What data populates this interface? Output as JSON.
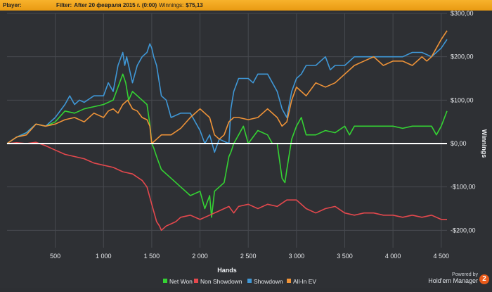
{
  "topbar": {
    "player_label": "Player:",
    "filter_label": "Filter:",
    "filter_value": "After 20 февраля 2015 г. (0:00)",
    "winnings_label": "Winnings:",
    "winnings_value": "$75,13"
  },
  "branding": {
    "powered_by": "Powered by",
    "product": "Hold'em Manager",
    "version_badge": "2"
  },
  "colors": {
    "net_won": "#34d233",
    "non_showdown": "#e4484d",
    "showdown": "#3f97d6",
    "all_in_ev": "#ef9338",
    "zero_line": "#ffffff",
    "grid": "#474a4f",
    "plot_bg": "#2e3034",
    "topbar": "#f3a81e"
  },
  "chart_data": {
    "type": "line",
    "xlabel": "Hands",
    "ylabel": "Winnings",
    "xlim": [
      0,
      4560
    ],
    "ylim": [
      -240,
      300
    ],
    "x_ticks": [
      500,
      1000,
      1500,
      2000,
      2500,
      3000,
      3500,
      4000,
      4500
    ],
    "x_tick_labels": [
      "500",
      "1 000",
      "1 500",
      "2 000",
      "2 500",
      "3 000",
      "3 500",
      "4 000",
      "4 500"
    ],
    "y_ticks": [
      300,
      200,
      100,
      0,
      -100,
      -200
    ],
    "y_tick_labels": [
      "$300,00",
      "$200,00",
      "$100,00",
      "$0,00",
      "-$100,00",
      "-$200,00"
    ],
    "legend_position": "bottom",
    "grid": true,
    "series": [
      {
        "name": "Net Won",
        "color_key": "net_won",
        "x": [
          0,
          100,
          200,
          300,
          400,
          500,
          600,
          700,
          800,
          900,
          1000,
          1100,
          1200,
          1230,
          1260,
          1300,
          1400,
          1450,
          1480,
          1500,
          1520,
          1550,
          1600,
          1700,
          1800,
          1900,
          2000,
          2050,
          2100,
          2120,
          2150,
          2200,
          2250,
          2300,
          2320,
          2350,
          2400,
          2450,
          2500,
          2600,
          2700,
          2750,
          2800,
          2850,
          2880,
          2900,
          2950,
          3000,
          3050,
          3100,
          3200,
          3300,
          3400,
          3500,
          3550,
          3600,
          3700,
          3800,
          3900,
          4000,
          4100,
          4200,
          4300,
          4400,
          4450,
          4500,
          4560
        ],
        "y": [
          0,
          15,
          25,
          45,
          40,
          50,
          75,
          70,
          80,
          85,
          90,
          100,
          160,
          140,
          100,
          120,
          100,
          90,
          45,
          0,
          -10,
          -30,
          -60,
          -80,
          -100,
          -120,
          -110,
          -150,
          -120,
          -170,
          -110,
          -100,
          -90,
          -30,
          -20,
          0,
          20,
          40,
          0,
          30,
          20,
          0,
          0,
          -80,
          -90,
          -60,
          10,
          40,
          60,
          20,
          20,
          30,
          25,
          40,
          20,
          40,
          40,
          40,
          40,
          40,
          35,
          40,
          40,
          40,
          20,
          40,
          75
        ]
      },
      {
        "name": "Non Showdown",
        "color_key": "non_showdown",
        "x": [
          0,
          100,
          200,
          300,
          400,
          500,
          600,
          700,
          800,
          900,
          1000,
          1100,
          1200,
          1300,
          1400,
          1450,
          1500,
          1550,
          1580,
          1600,
          1650,
          1700,
          1750,
          1800,
          1900,
          2000,
          2100,
          2200,
          2300,
          2350,
          2400,
          2500,
          2600,
          2700,
          2800,
          2900,
          3000,
          3100,
          3200,
          3300,
          3400,
          3500,
          3600,
          3700,
          3800,
          3900,
          4000,
          4100,
          4200,
          4300,
          4400,
          4500,
          4560
        ],
        "y": [
          0,
          2,
          0,
          3,
          -5,
          -15,
          -25,
          -30,
          -35,
          -45,
          -50,
          -55,
          -65,
          -70,
          -85,
          -100,
          -140,
          -180,
          -190,
          -200,
          -190,
          -185,
          -180,
          -170,
          -165,
          -175,
          -165,
          -155,
          -145,
          -160,
          -145,
          -140,
          -150,
          -140,
          -145,
          -130,
          -130,
          -150,
          -160,
          -150,
          -145,
          -160,
          -165,
          -160,
          -160,
          -165,
          -165,
          -170,
          -165,
          -170,
          -165,
          -175,
          -175
        ]
      },
      {
        "name": "Showdown",
        "color_key": "showdown",
        "x": [
          0,
          100,
          200,
          300,
          400,
          500,
          600,
          650,
          700,
          750,
          800,
          900,
          1000,
          1050,
          1100,
          1150,
          1200,
          1220,
          1240,
          1300,
          1350,
          1400,
          1450,
          1480,
          1500,
          1520,
          1550,
          1600,
          1650,
          1700,
          1800,
          1900,
          2000,
          2050,
          2100,
          2150,
          2200,
          2300,
          2320,
          2350,
          2400,
          2500,
          2550,
          2600,
          2700,
          2800,
          2850,
          2900,
          2950,
          3000,
          3050,
          3100,
          3200,
          3300,
          3350,
          3400,
          3500,
          3600,
          3700,
          3800,
          3900,
          4000,
          4100,
          4200,
          4300,
          4400,
          4450,
          4500,
          4560
        ],
        "y": [
          0,
          15,
          25,
          45,
          40,
          60,
          90,
          110,
          90,
          100,
          95,
          110,
          110,
          140,
          120,
          180,
          210,
          180,
          200,
          140,
          180,
          200,
          210,
          230,
          220,
          200,
          180,
          110,
          100,
          60,
          70,
          70,
          30,
          0,
          20,
          -20,
          10,
          0,
          80,
          120,
          150,
          150,
          140,
          160,
          160,
          120,
          80,
          60,
          120,
          150,
          160,
          180,
          180,
          200,
          170,
          180,
          180,
          200,
          200,
          200,
          200,
          200,
          200,
          210,
          210,
          200,
          210,
          220,
          240
        ]
      },
      {
        "name": "All-In EV",
        "color_key": "all_in_ev",
        "x": [
          0,
          100,
          200,
          300,
          400,
          500,
          600,
          700,
          800,
          900,
          1000,
          1050,
          1100,
          1150,
          1200,
          1250,
          1300,
          1350,
          1400,
          1450,
          1480,
          1500,
          1550,
          1600,
          1700,
          1800,
          1900,
          2000,
          2050,
          2100,
          2150,
          2200,
          2250,
          2300,
          2350,
          2400,
          2500,
          2600,
          2700,
          2800,
          2850,
          2900,
          2950,
          3000,
          3050,
          3100,
          3200,
          3300,
          3400,
          3500,
          3600,
          3700,
          3800,
          3900,
          4000,
          4100,
          4200,
          4300,
          4350,
          4400,
          4450,
          4500,
          4560
        ],
        "y": [
          0,
          15,
          20,
          45,
          40,
          45,
          55,
          60,
          50,
          70,
          60,
          75,
          80,
          70,
          90,
          100,
          80,
          75,
          60,
          55,
          40,
          0,
          10,
          20,
          20,
          35,
          60,
          80,
          70,
          60,
          20,
          10,
          20,
          50,
          60,
          60,
          55,
          60,
          80,
          60,
          40,
          50,
          100,
          130,
          120,
          110,
          140,
          130,
          140,
          160,
          180,
          190,
          200,
          180,
          190,
          190,
          180,
          200,
          190,
          200,
          220,
          240,
          260
        ]
      }
    ]
  }
}
